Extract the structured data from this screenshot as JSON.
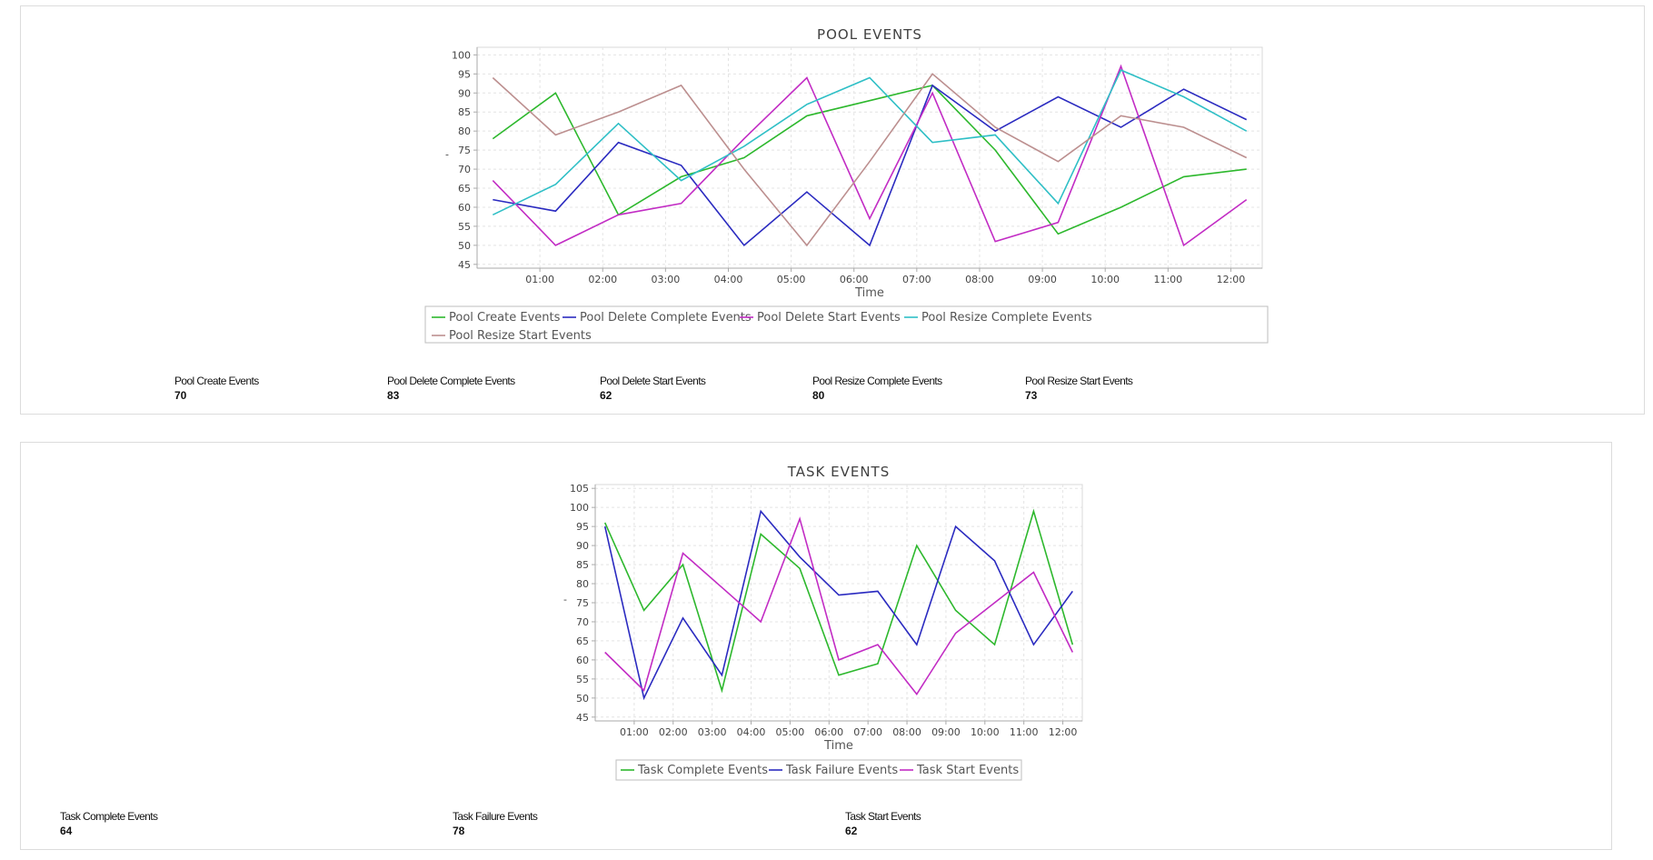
{
  "colors": {
    "green": "#2db82d",
    "blue": "#2b2bc0",
    "magenta": "#c22cc4",
    "cyan": "#2fbfc6",
    "rosy": "#bc8f8f",
    "grid": "#e4e4e4",
    "axis": "#aaaaaa"
  },
  "chart_data": [
    {
      "type": "line",
      "title": "POOL EVENTS",
      "xlabel": "Time",
      "ylabel": "-",
      "x_ticks": [
        "01:00",
        "02:00",
        "03:00",
        "04:00",
        "05:00",
        "06:00",
        "07:00",
        "08:00",
        "09:00",
        "10:00",
        "11:00",
        "12:00"
      ],
      "x": [
        0.25,
        1.25,
        2.25,
        3.25,
        4.25,
        5.25,
        6.25,
        7.25,
        8.25,
        9.25,
        10.25,
        11.25,
        12.25
      ],
      "xlim": [
        0,
        12.5
      ],
      "ylim": [
        44,
        102
      ],
      "y_ticks": [
        45,
        50,
        55,
        60,
        65,
        70,
        75,
        80,
        85,
        90,
        95,
        100
      ],
      "grid": true,
      "legend_position": "bottom",
      "series": [
        {
          "name": "Pool Create Events",
          "color": "green",
          "values": [
            78,
            90,
            58,
            68,
            73,
            84,
            88,
            92,
            75,
            53,
            60,
            68,
            70
          ]
        },
        {
          "name": "Pool Delete Complete Events",
          "color": "blue",
          "values": [
            62,
            59,
            77,
            71,
            50,
            64,
            50,
            92,
            80,
            89,
            81,
            91,
            83
          ]
        },
        {
          "name": "Pool Delete Start Events",
          "color": "magenta",
          "values": [
            67,
            50,
            58,
            61,
            78,
            94,
            57,
            90,
            51,
            56,
            97,
            50,
            62
          ]
        },
        {
          "name": "Pool Resize Complete Events",
          "color": "cyan",
          "values": [
            58,
            66,
            82,
            67,
            76,
            87,
            94,
            77,
            79,
            61,
            96,
            89,
            80
          ]
        },
        {
          "name": "Pool Resize Start Events",
          "color": "rosy",
          "values": [
            94,
            79,
            85,
            92,
            70,
            50,
            72,
            95,
            81,
            72,
            84,
            81,
            73
          ]
        }
      ]
    },
    {
      "type": "line",
      "title": "TASK EVENTS",
      "xlabel": "Time",
      "ylabel": "-",
      "x_ticks": [
        "01:00",
        "02:00",
        "03:00",
        "04:00",
        "05:00",
        "06:00",
        "07:00",
        "08:00",
        "09:00",
        "10:00",
        "11:00",
        "12:00"
      ],
      "x": [
        0.25,
        1.25,
        2.25,
        3.25,
        4.25,
        5.25,
        6.25,
        7.25,
        8.25,
        9.25,
        10.25,
        11.25,
        12.25
      ],
      "xlim": [
        0,
        12.5
      ],
      "ylim": [
        44,
        106
      ],
      "y_ticks": [
        45,
        50,
        55,
        60,
        65,
        70,
        75,
        80,
        85,
        90,
        95,
        100,
        105
      ],
      "grid": true,
      "legend_position": "bottom",
      "series": [
        {
          "name": "Task Complete Events",
          "color": "green",
          "values": [
            96,
            73,
            85,
            52,
            93,
            84,
            56,
            59,
            90,
            73,
            64,
            99,
            64
          ]
        },
        {
          "name": "Task Failure Events",
          "color": "blue",
          "values": [
            95,
            50,
            71,
            56,
            99,
            87,
            77,
            78,
            64,
            95,
            86,
            64,
            78
          ]
        },
        {
          "name": "Task Start Events",
          "color": "magenta",
          "values": [
            62,
            52,
            88,
            79,
            70,
            97,
            60,
            64,
            51,
            67,
            75,
            83,
            62
          ]
        }
      ]
    }
  ],
  "pool_stats": [
    {
      "label": "Pool Create Events",
      "value": "70"
    },
    {
      "label": "Pool Delete Complete Events",
      "value": "83"
    },
    {
      "label": "Pool Delete Start Events",
      "value": "62"
    },
    {
      "label": "Pool Resize Complete Events",
      "value": "80"
    },
    {
      "label": "Pool Resize Start Events",
      "value": "73"
    }
  ],
  "task_stats": [
    {
      "label": "Task Complete Events",
      "value": "64"
    },
    {
      "label": "Task Failure Events",
      "value": "78"
    },
    {
      "label": "Task Start Events",
      "value": "62"
    }
  ]
}
